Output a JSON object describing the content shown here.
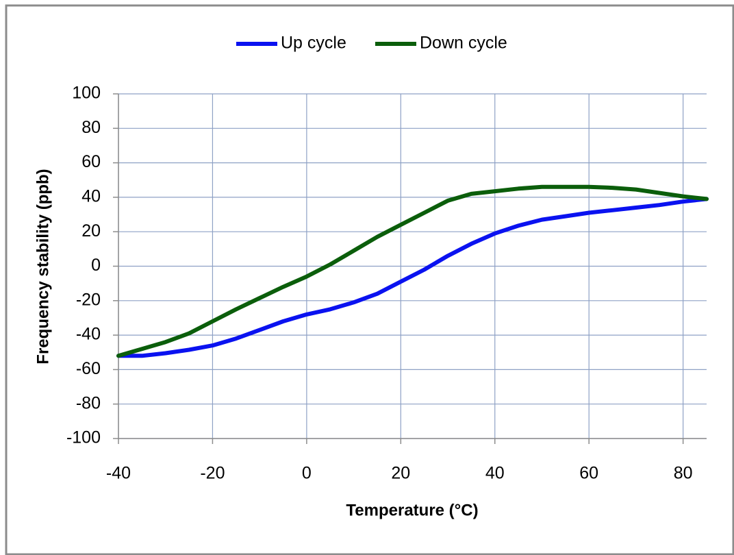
{
  "chart_data": {
    "type": "line",
    "x_label": "Temperature (°C)",
    "y_label": "Frequency stability (ppb)",
    "x": [
      -40,
      -35,
      -30,
      -25,
      -20,
      -15,
      -10,
      -5,
      0,
      5,
      10,
      15,
      20,
      25,
      30,
      35,
      40,
      45,
      50,
      55,
      60,
      65,
      70,
      75,
      80,
      85
    ],
    "series": [
      {
        "name": "Up cycle",
        "color": "#0a12f0",
        "values": [
          -52,
          -52,
          -50.5,
          -48.5,
          -46,
          -42,
          -37,
          -32,
          -28,
          -25,
          -21,
          -16,
          -9,
          -2,
          6,
          13,
          19,
          23.5,
          27,
          29,
          31,
          32.5,
          34,
          35.5,
          37.5,
          39
        ]
      },
      {
        "name": "Down cycle",
        "color": "#0b5e0b",
        "values": [
          -52,
          -48,
          -44,
          -39,
          -32,
          -25,
          -18.5,
          -12,
          -6,
          1,
          9,
          17,
          24,
          31,
          38,
          42,
          43.5,
          45,
          46,
          46,
          46,
          45.5,
          44.5,
          42.5,
          40.5,
          39
        ]
      }
    ],
    "xlim": [
      -40,
      85
    ],
    "xticks": [
      -40,
      -20,
      0,
      20,
      40,
      60,
      80
    ],
    "ylim": [
      -100,
      100
    ],
    "yticks": [
      -100,
      -80,
      -60,
      -40,
      -20,
      0,
      20,
      40,
      60,
      80,
      100
    ],
    "grid": true,
    "legend": "top"
  }
}
